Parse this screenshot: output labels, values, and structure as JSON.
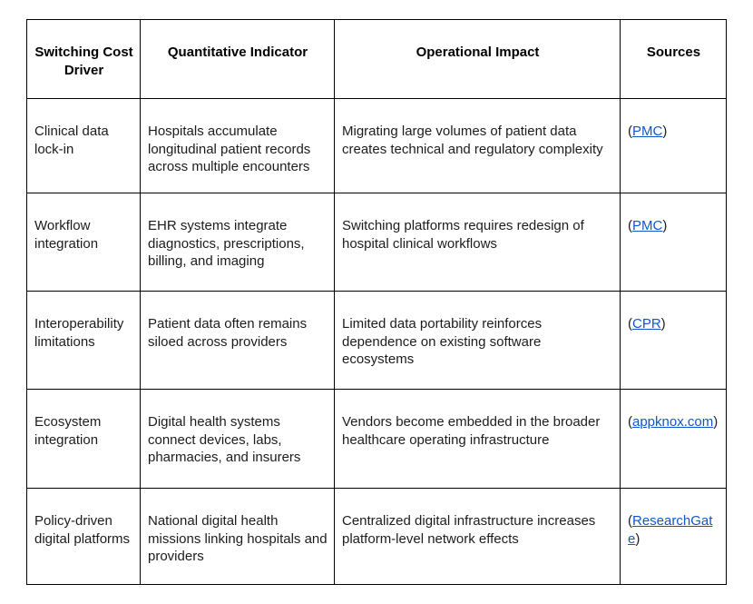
{
  "colors": {
    "link": "#1155CC",
    "border": "#000000",
    "text": "#1c1c1c",
    "background": "#ffffff"
  },
  "table": {
    "headers": [
      "Switching Cost Driver",
      "Quantitative Indicator",
      "Operational Impact",
      "Sources"
    ],
    "rows": [
      {
        "driver": "Clinical data lock-in",
        "indicator": "Hospitals accumulate longitudinal patient records across multiple encounters",
        "impact": "Migrating large volumes of patient data creates technical and regulatory complexity",
        "source_open": "(",
        "source_link": "PMC",
        "source_close": ")"
      },
      {
        "driver": "Workflow integration",
        "indicator": "EHR systems integrate diagnostics, prescriptions, billing, and imaging",
        "impact": "Switching platforms requires redesign of hospital clinical workflows",
        "source_open": "(",
        "source_link": "PMC",
        "source_close": ")"
      },
      {
        "driver": "Interoperability limitations",
        "indicator": "Patient data often remains siloed across providers",
        "impact": "Limited data portability reinforces dependence on existing software ecosystems",
        "source_open": "(",
        "source_link": "CPR",
        "source_close": ")"
      },
      {
        "driver": "Ecosystem integration",
        "indicator": "Digital health systems connect devices, labs, pharmacies, and insurers",
        "impact": "Vendors become embedded in the broader healthcare operating infrastructure",
        "source_open": "(",
        "source_link": "appknox.com",
        "source_close": ")"
      },
      {
        "driver": "Policy-driven digital platforms",
        "indicator": "National digital health missions linking hospitals and providers",
        "impact": "Centralized digital infrastructure increases platform-level network effects",
        "source_open": "(",
        "source_link": "ResearchGate",
        "source_close": ")"
      }
    ]
  }
}
